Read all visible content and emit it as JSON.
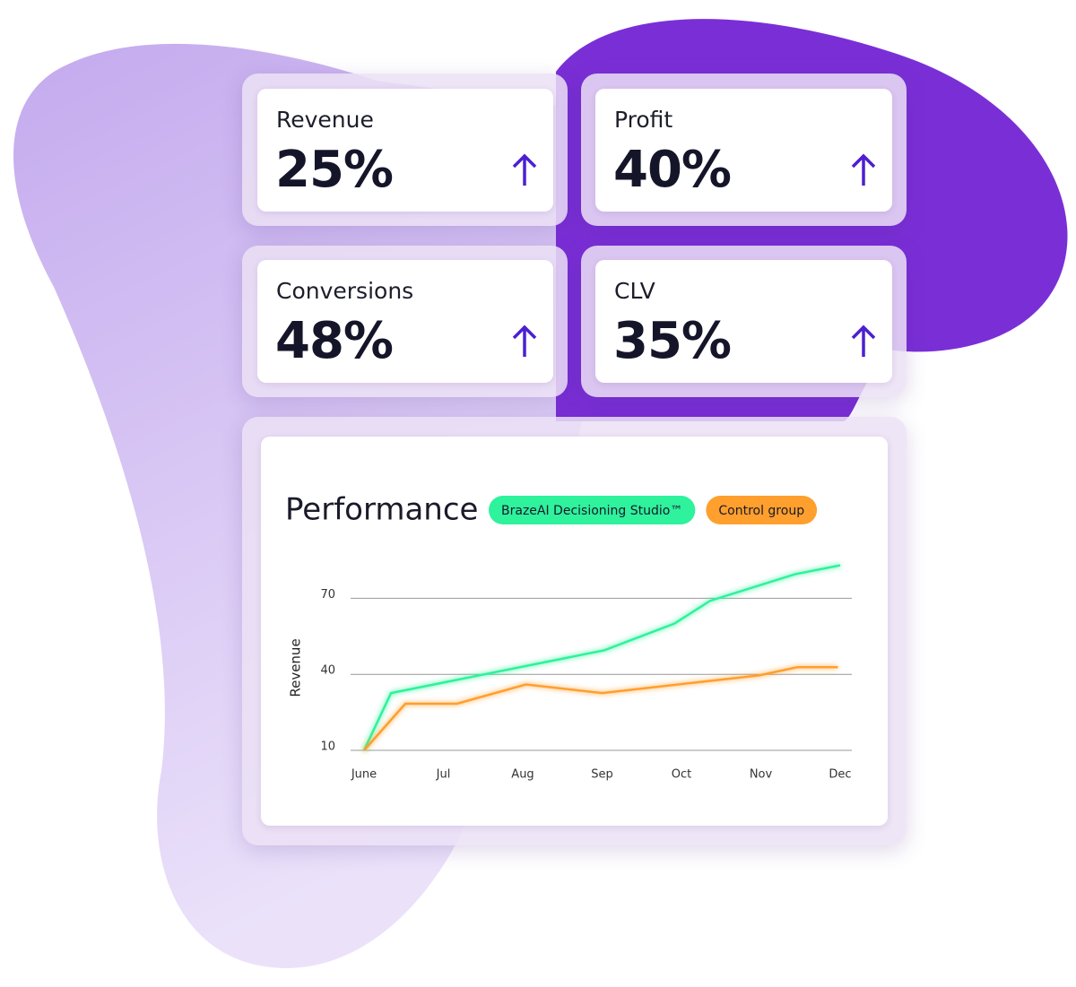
{
  "cards": [
    {
      "label": "Revenue",
      "value": "25%"
    },
    {
      "label": "Profit",
      "value": "40%"
    },
    {
      "label": "Conversions",
      "value": "48%"
    },
    {
      "label": "CLV",
      "value": "35%"
    }
  ],
  "chart_data": {
    "type": "line",
    "title": "Performance",
    "y_label": "Revenue",
    "xlim": [
      0,
      6
    ],
    "xticks": [
      {
        "value": 0,
        "label": "June"
      },
      {
        "value": 1,
        "label": "Jul"
      },
      {
        "value": 2,
        "label": "Aug"
      },
      {
        "value": 3,
        "label": "Sep"
      },
      {
        "value": 4,
        "label": "Oct"
      },
      {
        "value": 5,
        "label": "Nov"
      },
      {
        "value": 6,
        "label": "Dec"
      }
    ],
    "ylim": [
      10,
      85
    ],
    "yticks": [
      10,
      40,
      70
    ],
    "grid": true,
    "series": [
      {
        "name": "BrazeAI Decisioning Studio™",
        "color": "#2ef29c",
        "x": [
          0,
          0.34,
          3.03,
          3.91,
          4.36,
          5.43,
          6
        ],
        "values": [
          10,
          32.6,
          49.5,
          60,
          69,
          79.5,
          83
        ]
      },
      {
        "name": "Control group",
        "color": "#ff9f2e",
        "x": [
          0,
          0.52,
          1.17,
          2.04,
          3.0,
          4.98,
          5.46,
          5.97
        ],
        "values": [
          10,
          28.4,
          28.4,
          36,
          32.6,
          39.6,
          42.8,
          42.8
        ]
      }
    ]
  }
}
